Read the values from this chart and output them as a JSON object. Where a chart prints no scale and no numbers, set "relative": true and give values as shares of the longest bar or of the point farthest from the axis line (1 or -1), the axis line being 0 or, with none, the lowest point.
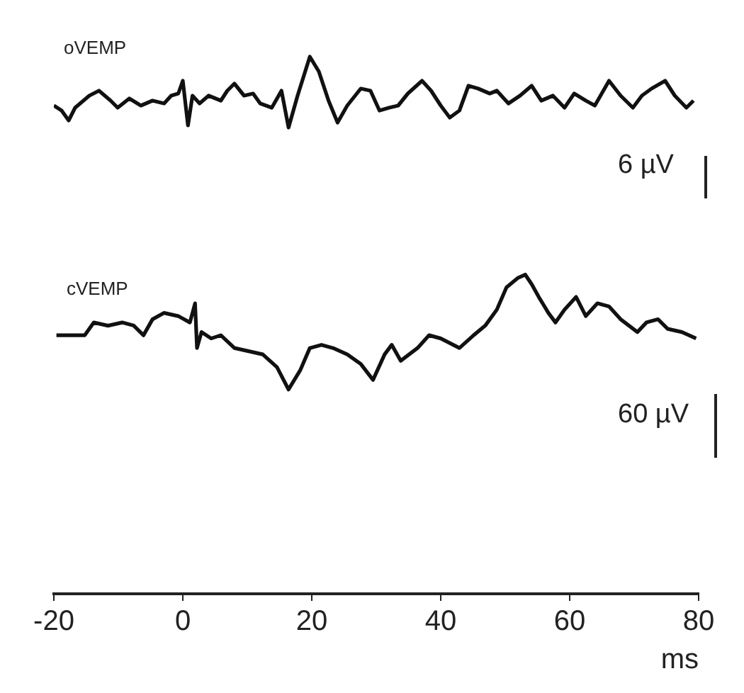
{
  "chart_data": [
    {
      "type": "line",
      "title": "oVEMP",
      "relative": true,
      "color": "#111111",
      "xlim": [
        -20,
        80
      ],
      "tick_labels": false,
      "annotations": [
        "6 µV"
      ],
      "x": [
        -20,
        -18.8,
        -17.7,
        -16.7,
        -14.5,
        -13.0,
        -11.2,
        -10.1,
        -8.3,
        -6.5,
        -4.7,
        -2.9,
        -1.8,
        -0.7,
        0.0,
        0.8,
        1.5,
        2.6,
        4.0,
        5.9,
        6.9,
        8.0,
        9.5,
        10.9,
        12.0,
        13.8,
        15.3,
        16.4,
        17.8,
        19.7,
        21.1,
        22.6,
        24.0,
        25.5,
        27.6,
        29.1,
        30.5,
        32.0,
        33.4,
        34.9,
        37.1,
        38.5,
        40.0,
        41.4,
        42.9,
        44.3,
        45.8,
        47.6,
        48.7,
        50.5,
        52.3,
        54.1,
        55.6,
        57.4,
        59.2,
        60.7,
        62.5,
        63.9,
        66.1,
        67.9,
        69.8,
        71.2,
        72.7,
        74.8,
        76.3,
        78.1,
        79.2
      ],
      "values": [
        0.31,
        0.24,
        0.1,
        0.28,
        0.45,
        0.52,
        0.38,
        0.28,
        0.41,
        0.31,
        0.38,
        0.34,
        0.45,
        0.48,
        0.66,
        0.03,
        0.45,
        0.34,
        0.45,
        0.38,
        0.52,
        0.62,
        0.45,
        0.48,
        0.34,
        0.28,
        0.52,
        0.0,
        0.45,
        1.0,
        0.79,
        0.38,
        0.07,
        0.31,
        0.55,
        0.52,
        0.24,
        0.28,
        0.31,
        0.48,
        0.66,
        0.52,
        0.31,
        0.14,
        0.24,
        0.59,
        0.55,
        0.48,
        0.52,
        0.34,
        0.45,
        0.59,
        0.38,
        0.45,
        0.28,
        0.48,
        0.38,
        0.31,
        0.66,
        0.45,
        0.28,
        0.45,
        0.55,
        0.66,
        0.45,
        0.28,
        0.38
      ]
    },
    {
      "type": "line",
      "title": "cVEMP",
      "relative": true,
      "color": "#111111",
      "xlim": [
        -20,
        80
      ],
      "xticks": [
        -20,
        0,
        20,
        40,
        60,
        80
      ],
      "xlabel": "ms",
      "tick_labels": "x",
      "annotations": [
        "60 µV"
      ],
      "x": [
        -19.6,
        -15.2,
        -13.8,
        -11.6,
        -9.4,
        -7.6,
        -6.1,
        -4.7,
        -2.9,
        -0.7,
        1.1,
        1.9,
        2.2,
        2.9,
        4.4,
        5.9,
        8.0,
        10.2,
        12.4,
        14.6,
        16.4,
        18.2,
        19.7,
        21.5,
        23.3,
        25.5,
        27.6,
        29.5,
        31.3,
        32.4,
        33.8,
        36.4,
        38.2,
        40.0,
        42.9,
        45.1,
        46.9,
        48.7,
        50.2,
        52.0,
        53.1,
        54.1,
        55.2,
        56.7,
        57.8,
        59.2,
        61.0,
        62.5,
        64.3,
        66.1,
        67.9,
        70.5,
        71.9,
        73.7,
        75.2,
        77.4,
        79.6
      ],
      "values": [
        0.81,
        0.81,
        0.85,
        0.84,
        0.85,
        0.84,
        0.81,
        0.86,
        0.88,
        0.87,
        0.85,
        0.91,
        0.77,
        0.82,
        0.8,
        0.81,
        0.77,
        0.76,
        0.75,
        0.71,
        0.64,
        0.7,
        0.77,
        0.78,
        0.77,
        0.75,
        0.72,
        0.67,
        0.75,
        0.78,
        0.73,
        0.77,
        0.81,
        0.8,
        0.77,
        0.81,
        0.84,
        0.89,
        0.96,
        0.99,
        1.0,
        0.97,
        0.93,
        0.88,
        0.85,
        0.89,
        0.93,
        0.87,
        0.91,
        0.9,
        0.86,
        0.82,
        0.85,
        0.86,
        0.83,
        0.82,
        0.8
      ]
    }
  ]
}
